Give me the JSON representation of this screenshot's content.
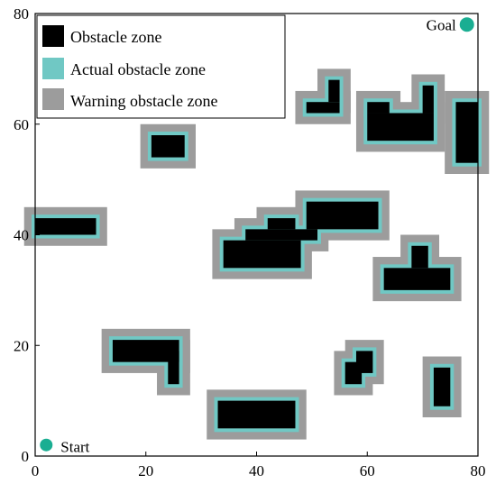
{
  "colors": {
    "obstacle": "#000000",
    "actual": "#70c8c4",
    "warning": "#9c9c9c",
    "point": "#1aae92",
    "background": "#ffffff"
  },
  "axes": {
    "x_range": [
      0,
      80
    ],
    "y_range": [
      0,
      80
    ],
    "x_ticks": [
      0,
      20,
      40,
      60,
      80
    ],
    "y_ticks": [
      0,
      20,
      40,
      60,
      80
    ],
    "x_tick_labels": [
      "0",
      "20",
      "40",
      "60",
      "80"
    ],
    "y_tick_labels": [
      "0",
      "20",
      "40",
      "60",
      "80"
    ]
  },
  "legend": {
    "placement": "top-left",
    "items": [
      {
        "label": "Obstacle zone",
        "color": "#000000"
      },
      {
        "label": "Actual obstacle zone",
        "color": "#70c8c4"
      },
      {
        "label": "Warning obstacle zone",
        "color": "#9c9c9c"
      }
    ]
  },
  "points": {
    "start": {
      "label": "Start",
      "x": 2,
      "y": 2
    },
    "goal": {
      "label": "Goal",
      "x": 78,
      "y": 78
    }
  },
  "obstacles": [
    {
      "name": "obstacle-left-bar",
      "cells": [
        [
          0,
          40,
          11,
          43
        ]
      ]
    },
    {
      "name": "obstacle-upper-left-block",
      "cells": [
        [
          21,
          54,
          27,
          58
        ]
      ]
    },
    {
      "name": "obstacle-l-shape-left",
      "cells": [
        [
          14,
          17,
          26,
          21
        ],
        [
          24,
          13,
          26,
          19
        ]
      ]
    },
    {
      "name": "obstacle-bottom-block",
      "cells": [
        [
          33,
          5,
          47,
          10
        ]
      ]
    },
    {
      "name": "obstacle-center-cluster",
      "cells": [
        [
          34,
          34,
          48,
          39
        ],
        [
          38,
          39,
          51,
          41
        ],
        [
          42,
          41,
          47,
          43
        ]
      ]
    },
    {
      "name": "obstacle-center-right-bar",
      "cells": [
        [
          49,
          41,
          62,
          46
        ]
      ]
    },
    {
      "name": "obstacle-top-small-l",
      "cells": [
        [
          49,
          62,
          55,
          64
        ],
        [
          53,
          64,
          55,
          68
        ]
      ]
    },
    {
      "name": "obstacle-top-right-u",
      "cells": [
        [
          60,
          57,
          72,
          62
        ],
        [
          60,
          62,
          64,
          64
        ],
        [
          70,
          62,
          72,
          67
        ]
      ]
    },
    {
      "name": "obstacle-right-edge-bar",
      "cells": [
        [
          76,
          53,
          80,
          64
        ]
      ]
    },
    {
      "name": "obstacle-t-shape",
      "cells": [
        [
          63,
          30,
          75,
          34
        ],
        [
          68,
          34,
          71,
          38
        ]
      ]
    },
    {
      "name": "obstacle-diagonal-steps",
      "cells": [
        [
          56,
          13,
          59,
          17
        ],
        [
          58,
          15,
          61,
          19
        ]
      ]
    },
    {
      "name": "obstacle-right-vertical",
      "cells": [
        [
          72,
          9,
          75,
          16
        ]
      ]
    }
  ]
}
